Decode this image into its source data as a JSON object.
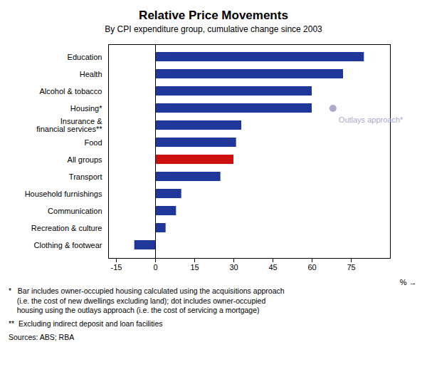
{
  "chart_data": {
    "type": "bar",
    "orientation": "horizontal",
    "title": "Relative Price Movements",
    "subtitle": "By CPI expenditure group, cumulative change since 2003",
    "categories": [
      "Clothing & footwear",
      "Recreation & culture",
      "Communication",
      "Household furnishings",
      "Transport",
      "All groups",
      "Food",
      "Insurance &\nfinancial services**",
      "Housing*",
      "Alcohol & tobacco",
      "Health",
      "Education"
    ],
    "values": [
      -8,
      4,
      8,
      10,
      25,
      30,
      31,
      33,
      60,
      60,
      72,
      80
    ],
    "colors": [
      "#1e3799",
      "#1e3799",
      "#1e3799",
      "#1e3799",
      "#1e3799",
      "#cc1111",
      "#1e3799",
      "#1e3799",
      "#1e3799",
      "#1e3799",
      "#1e3799",
      "#1e3799"
    ],
    "xlim": [
      -18,
      90
    ],
    "xticks": [
      -15,
      0,
      15,
      30,
      45,
      60,
      75
    ],
    "xlabel": "%",
    "grid": false,
    "annotations": [
      {
        "category": "Housing*",
        "value": 68,
        "label": "Outlays approach*",
        "color": "#aaaacc"
      }
    ],
    "notes": [
      "*   Bar includes owner-occupied housing calculated using the acquisitions approach\n    (i.e. the cost of new dwellings excluding land); dot includes owner-occupied\n    housing using the outlays approach (i.e. the cost of servicing a mortgage)",
      "**  Excluding indirect deposit and loan facilities",
      "Sources: ABS; RBA"
    ]
  }
}
